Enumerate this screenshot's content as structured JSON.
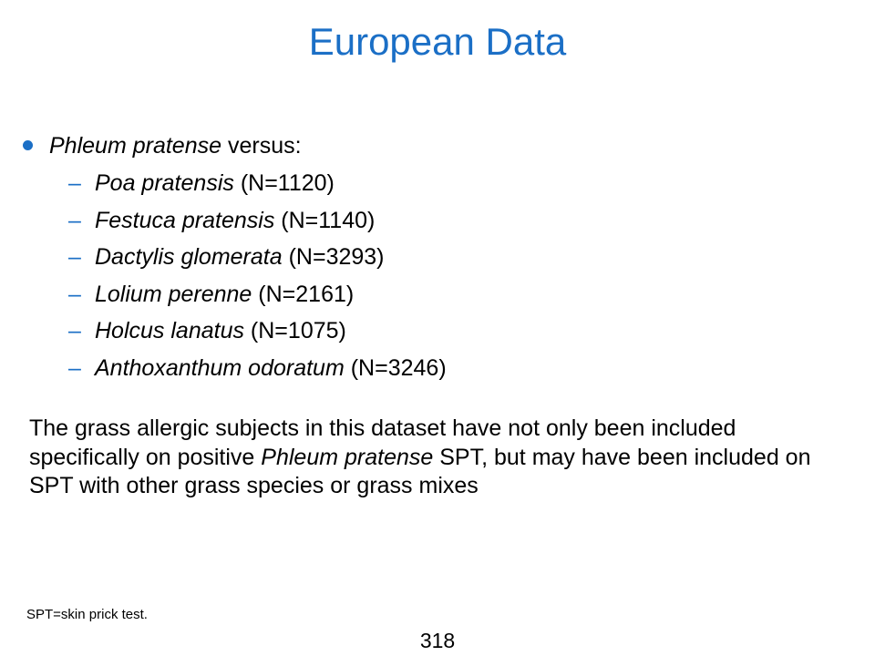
{
  "slide": {
    "title": "European Data",
    "bullet": {
      "italic": "Phleum pratense",
      "rest": " versus:"
    },
    "sub_items": [
      {
        "dash": "–",
        "species": "Poa pratensis",
        "count": " (N=1120)"
      },
      {
        "dash": "–",
        "species": "Festuca pratensis",
        "count": " (N=1140)"
      },
      {
        "dash": "–",
        "species": "Dactylis glomerata",
        "count": " (N=3293)"
      },
      {
        "dash": "–",
        "species": "Lolium perenne",
        "count": " (N=2161)"
      },
      {
        "dash": "–",
        "species": "Holcus lanatus",
        "count": " (N=1075)"
      },
      {
        "dash": "–",
        "species": "Anthoxanthum odoratum",
        "count": " (N=3246)"
      }
    ],
    "paragraph": {
      "part1": "The grass allergic subjects in this dataset have not only been included specifically on positive ",
      "italic": "Phleum pratense",
      "part2": " SPT, but may have been included on SPT with other grass species or grass mixes"
    },
    "footnote": "SPT=skin prick test.",
    "page_number": "318"
  },
  "colors": {
    "accent": "#1b6fc6",
    "text": "#000000",
    "background": "#ffffff"
  }
}
